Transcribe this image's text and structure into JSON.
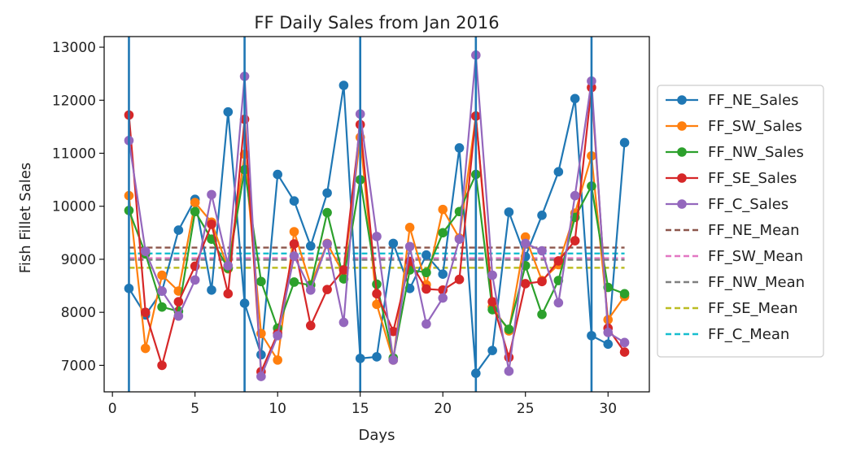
{
  "chart_data": {
    "type": "line",
    "title": "FF Daily Sales from Jan 2016",
    "xlabel": "Days",
    "ylabel": "Fish Fillet Sales",
    "xlim": [
      -0.5,
      32.5
    ],
    "ylim": [
      6500,
      13200
    ],
    "xticks": [
      0,
      5,
      10,
      15,
      20,
      25,
      30
    ],
    "yticks": [
      7000,
      8000,
      9000,
      10000,
      11000,
      12000,
      13000
    ],
    "x": [
      1,
      2,
      3,
      4,
      5,
      6,
      7,
      8,
      9,
      10,
      11,
      12,
      13,
      14,
      15,
      16,
      17,
      18,
      19,
      20,
      21,
      22,
      23,
      24,
      25,
      26,
      27,
      28,
      29,
      30,
      31
    ],
    "grid": false,
    "legend_position": "outside-right",
    "vertical_lines": [
      1,
      8,
      15,
      22,
      29
    ],
    "vertical_line_color": "#1f77b4",
    "series": [
      {
        "name": "FF_NE_Sales",
        "color": "#1f77b4",
        "values": [
          8450,
          7950,
          8400,
          9550,
          10130,
          8420,
          11780,
          8170,
          7200,
          10600,
          10100,
          9250,
          10250,
          12280,
          7130,
          7160,
          9300,
          8450,
          9080,
          8720,
          11100,
          6850,
          7280,
          9890,
          9050,
          9830,
          10650,
          12030,
          7560,
          7400,
          11200
        ]
      },
      {
        "name": "FF_SW_Sales",
        "color": "#ff7f0e",
        "values": [
          10200,
          7320,
          8700,
          8400,
          10070,
          9700,
          8820,
          10980,
          7600,
          7100,
          9520,
          8520,
          9300,
          8720,
          11300,
          8150,
          7100,
          9600,
          8520,
          9940,
          9400,
          11700,
          8100,
          7650,
          9420,
          8600,
          8900,
          9870,
          10950,
          7860,
          8300
        ]
      },
      {
        "name": "FF_NW_Sales",
        "color": "#2ca02c",
        "values": [
          9920,
          9100,
          8100,
          8020,
          9900,
          9380,
          8830,
          10690,
          8580,
          7700,
          8570,
          8510,
          9880,
          8630,
          10500,
          8530,
          7140,
          8800,
          8750,
          9500,
          9900,
          10600,
          8050,
          7680,
          8880,
          7960,
          8600,
          9790,
          10380,
          8470,
          8350
        ]
      },
      {
        "name": "FF_SE_Sales",
        "color": "#d62728",
        "values": [
          11720,
          8000,
          7000,
          8200,
          8870,
          9660,
          8350,
          11640,
          6880,
          7600,
          9290,
          7750,
          8430,
          8800,
          11540,
          8350,
          7640,
          8960,
          8440,
          8420,
          8620,
          11700,
          8200,
          7150,
          8540,
          8580,
          8970,
          9350,
          12240,
          7700,
          7250
        ]
      },
      {
        "name": "FF_C_Sales",
        "color": "#9467bd",
        "values": [
          11240,
          9150,
          8400,
          7930,
          8610,
          10220,
          8880,
          12450,
          6790,
          7560,
          9060,
          8420,
          9290,
          7810,
          11740,
          9430,
          7100,
          9240,
          7780,
          8270,
          9380,
          12850,
          8700,
          6890,
          9300,
          9160,
          8180,
          10200,
          12360,
          7620,
          7430
        ]
      }
    ],
    "mean_lines": [
      {
        "name": "FF_NE_Mean",
        "color": "#8c564b",
        "value": 9220
      },
      {
        "name": "FF_SW_Mean",
        "color": "#e377c2",
        "value": 9020
      },
      {
        "name": "FF_NW_Mean",
        "color": "#7f7f7f",
        "value": 8990
      },
      {
        "name": "FF_SE_Mean",
        "color": "#bcbd22",
        "value": 8840
      },
      {
        "name": "FF_C_Mean",
        "color": "#17becf",
        "value": 9110
      }
    ]
  }
}
